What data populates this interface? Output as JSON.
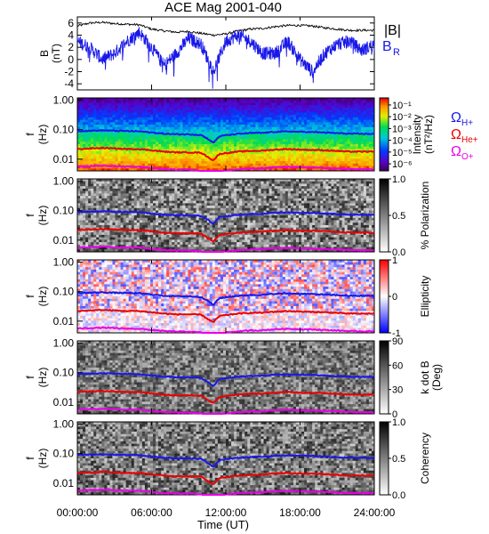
{
  "title": "ACE Mag 2001-040",
  "colors": {
    "h_plus": "#1818e8",
    "he_plus": "#e80000",
    "o_plus": "#e800e8",
    "b_total": "#000000",
    "b_radial": "#1818e8"
  },
  "chart_data": [
    {
      "type": "line",
      "ylabel": "B\n(nT)",
      "ylim": [
        -5,
        7
      ],
      "yticks": [
        "6",
        "4",
        "2",
        "0",
        "-2",
        "-4"
      ],
      "ytick_values": [
        6,
        4,
        2,
        0,
        -2,
        -4
      ],
      "legend": [
        "|B|",
        "B",
        "R"
      ],
      "legend_placement": "right",
      "x": [
        0,
        1,
        2,
        3,
        4,
        5,
        6,
        7,
        8,
        9,
        10,
        11,
        12,
        13,
        14,
        15,
        16,
        17,
        18,
        19,
        20,
        21,
        22,
        23,
        24
      ],
      "series": [
        {
          "name": "|B|",
          "values": [
            5.5,
            6.0,
            6.1,
            5.9,
            5.8,
            5.7,
            5.0,
            4.7,
            4.5,
            4.6,
            4.3,
            4.0,
            4.2,
            4.7,
            5.0,
            5.1,
            5.4,
            5.6,
            5.6,
            5.5,
            5.2,
            5.0,
            4.8,
            4.8,
            4.8
          ]
        },
        {
          "name": "B",
          "values": [
            3.0,
            2.0,
            0.0,
            1.0,
            3.0,
            4.5,
            2.0,
            -1.0,
            1.0,
            3.5,
            2.5,
            -2.0,
            3.0,
            4.0,
            3.0,
            1.0,
            1.0,
            3.0,
            0.0,
            -2.0,
            1.0,
            2.5,
            3.0,
            1.5,
            2.5
          ]
        }
      ]
    },
    {
      "type": "heatmap",
      "ylabel": "f\n(Hz)",
      "yscale": "log",
      "ylim": [
        0.004,
        1.2
      ],
      "yticks": [
        "1.00",
        "0.10",
        "0.01"
      ],
      "ytick_values": [
        1.0,
        0.1,
        0.01
      ],
      "colorbar_label": "Intensity\n(nT²/Hz)",
      "colorbar_ticks": [
        "10⁻¹",
        "10⁻²",
        "10⁻³",
        "10⁻⁴",
        "10⁻⁵",
        "10⁻⁶"
      ],
      "colorbar_tick_values": [
        -1,
        -2,
        -3,
        -4,
        -5,
        -6
      ],
      "colormap": "rainbow",
      "legend": [
        "Ω",
        "H+",
        "Ω",
        "He+",
        "Ω",
        "O+"
      ]
    },
    {
      "type": "heatmap",
      "ylabel": "f\n(Hz)",
      "yscale": "log",
      "ylim": [
        0.004,
        1.2
      ],
      "yticks": [
        "1.00",
        "0.10",
        "0.01"
      ],
      "ytick_values": [
        1.0,
        0.1,
        0.01
      ],
      "colorbar_label": "% Polarization",
      "colorbar_ticks": [
        "1.0",
        "0.5",
        "0.0"
      ],
      "colorbar_tick_values": [
        1.0,
        0.5,
        0.0
      ],
      "colormap": "gray"
    },
    {
      "type": "heatmap",
      "ylabel": "f\n(Hz)",
      "yscale": "log",
      "ylim": [
        0.004,
        1.2
      ],
      "yticks": [
        "1.00",
        "0.10",
        "0.01"
      ],
      "ytick_values": [
        1.0,
        0.1,
        0.01
      ],
      "colorbar_label": "Ellipticity",
      "colorbar_ticks": [
        "1",
        "0",
        "-1"
      ],
      "colorbar_tick_values": [
        1,
        0,
        -1
      ],
      "colormap": "blue-white-red"
    },
    {
      "type": "heatmap",
      "ylabel": "f\n(Hz)",
      "yscale": "log",
      "ylim": [
        0.004,
        1.2
      ],
      "yticks": [
        "1.00",
        "0.10",
        "0.01"
      ],
      "ytick_values": [
        1.0,
        0.1,
        0.01
      ],
      "colorbar_label": "k dot B\n(Deg)",
      "colorbar_ticks": [
        "90",
        "60",
        "30",
        "0"
      ],
      "colorbar_tick_values": [
        90,
        60,
        30,
        0
      ],
      "colormap": "gray"
    },
    {
      "type": "heatmap",
      "ylabel": "f\n(Hz)",
      "yscale": "log",
      "ylim": [
        0.004,
        1.2
      ],
      "yticks": [
        "1.00",
        "0.10",
        "0.01"
      ],
      "ytick_values": [
        1.0,
        0.1,
        0.01
      ],
      "colorbar_label": "Coherency",
      "colorbar_ticks": [
        "1.0",
        "0.5",
        "0.0"
      ],
      "colorbar_tick_values": [
        1.0,
        0.5,
        0.0
      ],
      "colormap": "gray"
    }
  ],
  "gyrofrequency_curves": {
    "x": [
      0,
      1,
      2,
      3,
      4,
      5,
      6,
      7,
      8,
      9,
      10,
      10.5,
      11,
      11.5,
      12,
      13,
      14,
      15,
      16,
      17,
      18,
      19,
      20,
      21,
      22,
      23,
      24
    ],
    "h_plus": [
      0.09,
      0.092,
      0.095,
      0.092,
      0.09,
      0.088,
      0.08,
      0.073,
      0.07,
      0.07,
      0.066,
      0.05,
      0.035,
      0.06,
      0.065,
      0.072,
      0.077,
      0.078,
      0.085,
      0.087,
      0.085,
      0.083,
      0.08,
      0.076,
      0.073,
      0.072,
      0.072
    ],
    "he_plus": [
      0.022,
      0.023,
      0.024,
      0.023,
      0.022,
      0.022,
      0.02,
      0.018,
      0.017,
      0.017,
      0.0165,
      0.012,
      0.009,
      0.015,
      0.016,
      0.018,
      0.019,
      0.0195,
      0.021,
      0.022,
      0.021,
      0.0205,
      0.02,
      0.019,
      0.018,
      0.018,
      0.018
    ],
    "o_plus": [
      0.0056,
      0.0058,
      0.006,
      0.0058,
      0.0056,
      0.0055,
      0.005,
      0.0046,
      0.0044,
      0.0044,
      0.0041,
      0.0032,
      0.0024,
      0.0038,
      0.0041,
      0.0045,
      0.0048,
      0.0049,
      0.0053,
      0.0055,
      0.0053,
      0.0052,
      0.005,
      0.0048,
      0.0046,
      0.0045,
      0.0045
    ]
  },
  "x_axis": {
    "label": "Time (UT)",
    "xlim": [
      0,
      24
    ],
    "tick_values": [
      0,
      6,
      12,
      18,
      24
    ],
    "tick_labels": [
      "00:00:00",
      "06:00:00",
      "12:00:00",
      "18:00:00",
      "24:00:00"
    ]
  }
}
